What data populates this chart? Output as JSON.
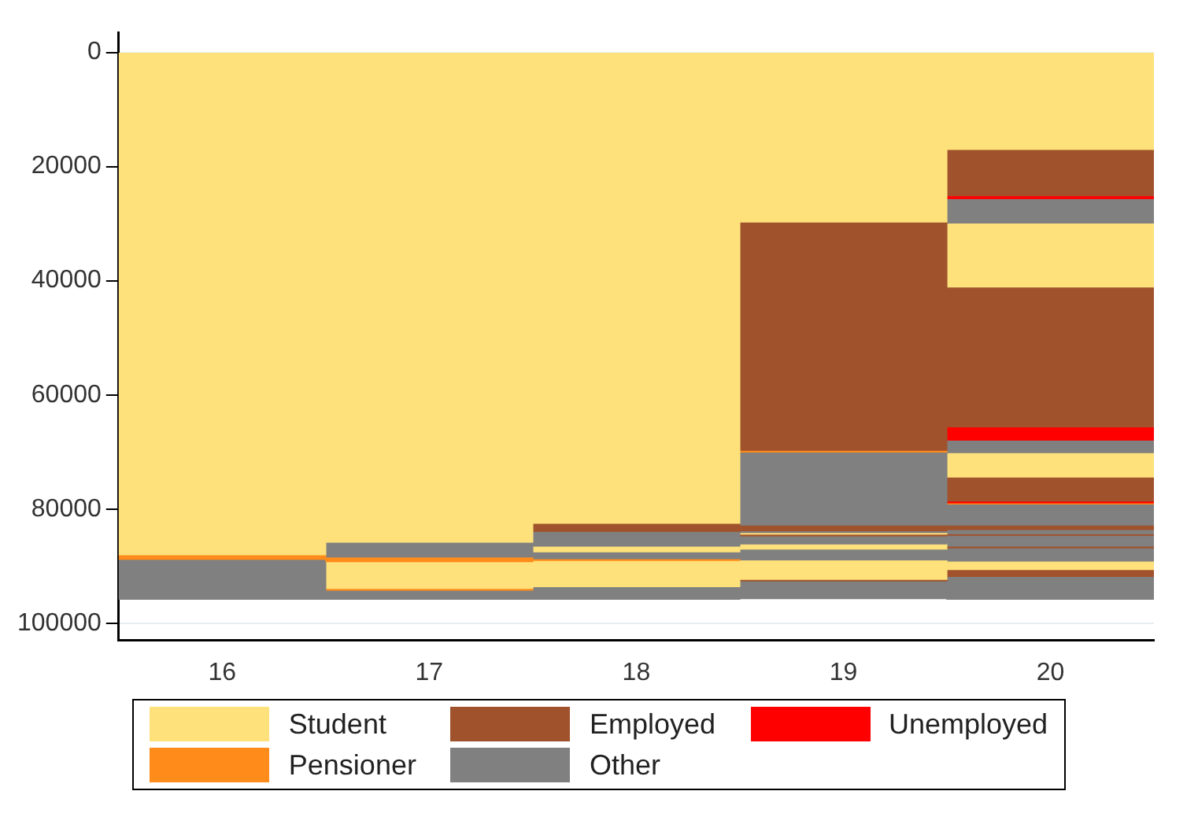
{
  "chart_data": {
    "type": "bar",
    "stacked": true,
    "categories": [
      "16",
      "17",
      "18",
      "19",
      "20"
    ],
    "ylim": [
      103000,
      -3500
    ],
    "yticks": [
      0,
      20000,
      40000,
      60000,
      80000,
      100000
    ],
    "grid": "y",
    "legend": "bottom",
    "series": [
      {
        "name": "Student",
        "color": "#fee17a",
        "values": [
          88000,
          85800,
          82500,
          29700,
          17000
        ]
      },
      {
        "name": "Employed",
        "color": "#a0522d",
        "values": [
          null,
          null,
          1400,
          40000,
          8100
        ]
      },
      {
        "color": "#ff8c1a",
        "values": [
          800,
          null,
          null,
          null,
          null
        ]
      },
      {
        "color": "#808080",
        "values": [
          null,
          2600,
          null,
          null,
          null
        ]
      },
      {
        "name": "Unemployed",
        "color": "#ff0000",
        "values": [
          null,
          null,
          null,
          null,
          500
        ]
      },
      {
        "name": "Pensioner",
        "color": "#ff8c1a",
        "values": [
          null,
          800,
          null,
          300,
          null
        ]
      },
      {
        "name": "Other",
        "color": "#808080",
        "values": [
          7000,
          null,
          2600,
          null,
          null
        ]
      },
      {
        "color": "#fee17a",
        "values": [
          null,
          4700,
          1000,
          null,
          null
        ]
      },
      {
        "color": "#808080",
        "values": [
          null,
          null,
          null,
          12800,
          4300
        ]
      },
      {
        "color": "#ff8c1a",
        "values": [
          null,
          300,
          null,
          null,
          null
        ]
      },
      {
        "color": "#808080",
        "values": [
          null,
          null,
          1200,
          null,
          null
        ]
      },
      {
        "color": "#a0522d",
        "values": [
          null,
          null,
          null,
          1000,
          null
        ]
      },
      {
        "color": "#fee17a",
        "values": [
          null,
          null,
          null,
          null,
          11200
        ]
      },
      {
        "color": "#808080",
        "values": [
          null,
          1600,
          null,
          300,
          null
        ]
      },
      {
        "color": "#ff8c1a",
        "values": [
          null,
          null,
          300,
          null,
          null
        ]
      },
      {
        "color": "#a0522d",
        "values": [
          null,
          null,
          null,
          null,
          24500
        ]
      },
      {
        "color": "#fee17a",
        "values": [
          null,
          null,
          4600,
          300,
          null
        ]
      },
      {
        "color": "#ff0000",
        "values": [
          null,
          null,
          null,
          null,
          2300
        ]
      },
      {
        "color": "#808080",
        "values": [
          null,
          null,
          2200,
          null,
          2200
        ]
      },
      {
        "color": "#a0522d",
        "values": [
          null,
          null,
          null,
          300,
          null
        ]
      },
      {
        "color": "#808080",
        "values": [
          null,
          null,
          null,
          1400,
          null
        ]
      },
      {
        "color": "#fee17a",
        "values": [
          null,
          null,
          null,
          null,
          4300
        ]
      },
      {
        "color": "#fee17a",
        "values": [
          null,
          null,
          null,
          900,
          null
        ]
      },
      {
        "color": "#a0522d",
        "values": [
          null,
          null,
          null,
          null,
          4200
        ]
      },
      {
        "color": "#808080",
        "values": [
          null,
          null,
          null,
          1900,
          null
        ]
      },
      {
        "color": "#ff0000",
        "values": [
          null,
          null,
          null,
          null,
          300
        ]
      },
      {
        "color": "#fee17a",
        "values": [
          null,
          null,
          null,
          3400,
          null
        ]
      },
      {
        "color": "#ff8c1a",
        "values": [
          null,
          null,
          null,
          null,
          200
        ]
      },
      {
        "color": "#a0522d",
        "values": [
          null,
          null,
          null,
          300,
          null
        ]
      },
      {
        "color": "#808080",
        "values": [
          null,
          null,
          null,
          null,
          3700
        ]
      },
      {
        "color": "#808080",
        "values": [
          null,
          null,
          null,
          3100,
          null
        ]
      },
      {
        "color": "#a0522d",
        "values": [
          null,
          null,
          null,
          null,
          800
        ]
      },
      {
        "color": "#808080",
        "values": [
          null,
          null,
          null,
          null,
          700
        ]
      },
      {
        "color": "#a0522d",
        "values": [
          null,
          null,
          null,
          null,
          300
        ]
      },
      {
        "color": "#808080",
        "values": [
          null,
          null,
          null,
          null,
          1900
        ]
      },
      {
        "color": "#a0522d",
        "values": [
          null,
          null,
          null,
          null,
          300
        ]
      },
      {
        "color": "#808080",
        "values": [
          null,
          null,
          null,
          null,
          2300
        ]
      },
      {
        "color": "#fee17a",
        "values": [
          null,
          null,
          null,
          null,
          1500
        ]
      },
      {
        "color": "#a0522d",
        "values": [
          null,
          null,
          null,
          null,
          1200
        ]
      },
      {
        "color": "#808080",
        "values": [
          null,
          null,
          null,
          null,
          4000
        ]
      }
    ]
  }
}
